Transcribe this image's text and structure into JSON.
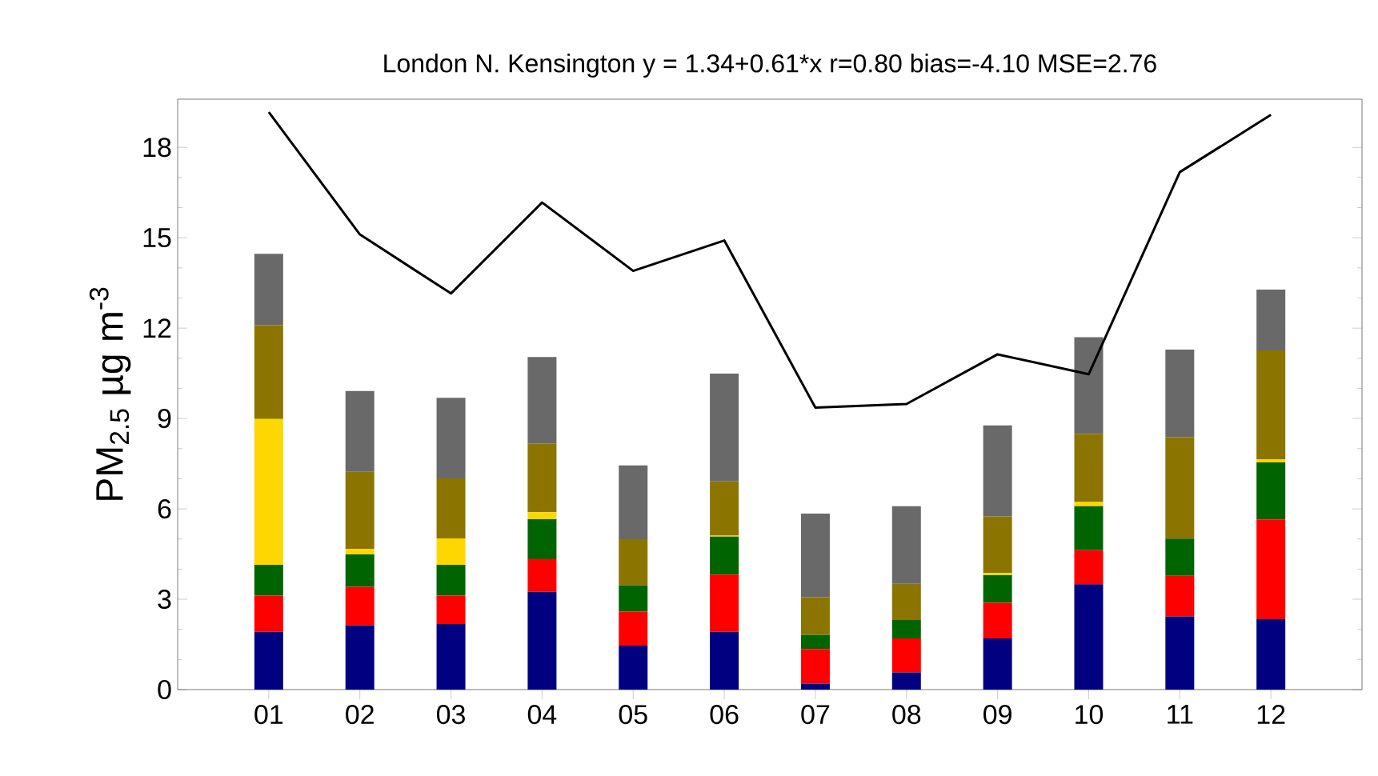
{
  "chart_data": {
    "type": "bar",
    "stacked": true,
    "title": "London N. Kensington   y = 1.34+0.61*x  r=0.80 bias=-4.10 MSE=2.76",
    "ylabel": "PM$_{2.5}$ µg m$^{-3}$",
    "categories": [
      "01",
      "02",
      "03",
      "04",
      "05",
      "06",
      "07",
      "08",
      "09",
      "10",
      "11",
      "12"
    ],
    "ylim": [
      0,
      19.6
    ],
    "yticks": [
      0,
      3,
      6,
      9,
      12,
      15,
      18
    ],
    "series": [
      {
        "color": "#000080",
        "values": [
          1.92,
          2.13,
          2.18,
          3.25,
          1.46,
          1.92,
          0.2,
          0.57,
          1.7,
          3.5,
          2.43,
          2.34
        ]
      },
      {
        "color": "#ff0000",
        "values": [
          1.2,
          1.28,
          0.94,
          1.08,
          1.13,
          1.9,
          1.15,
          1.13,
          1.18,
          1.13,
          1.35,
          3.31
        ]
      },
      {
        "color": "#006400",
        "values": [
          1.02,
          1.08,
          1.02,
          1.33,
          0.87,
          1.26,
          0.46,
          0.61,
          0.92,
          1.46,
          1.23,
          1.89
        ]
      },
      {
        "color": "#ffd700",
        "values": [
          4.84,
          0.18,
          0.88,
          0.23,
          0,
          0.03,
          0,
          0,
          0.07,
          0.14,
          0,
          0.11
        ]
      },
      {
        "color": "#8b7500",
        "values": [
          3.12,
          2.56,
          1.99,
          2.28,
          1.53,
          1.8,
          1.26,
          1.2,
          1.88,
          2.26,
          3.37,
          3.61
        ]
      },
      {
        "color": "#696969",
        "values": [
          2.37,
          2.68,
          2.68,
          2.87,
          2.45,
          3.58,
          2.77,
          2.58,
          3.02,
          3.21,
          2.91,
          2.02
        ]
      },
      {
        "type": "line",
        "color": "#000000",
        "values": [
          19.17,
          15.11,
          13.15,
          16.17,
          13.9,
          14.91,
          9.36,
          9.48,
          11.13,
          10.47,
          17.18,
          19.08
        ]
      }
    ]
  }
}
